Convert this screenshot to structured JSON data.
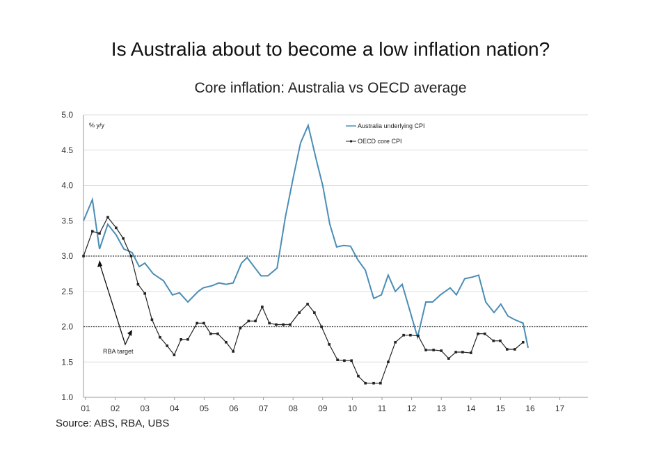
{
  "title": "Is Australia about to become a low inflation nation?",
  "subtitle": "Core inflation: Australia vs OECD average",
  "source": "Source: ABS, RBA, UBS",
  "chart_data": {
    "type": "line",
    "ylabel": "% y/y",
    "ylim": [
      1.0,
      5.0
    ],
    "xlim": [
      2001,
      2018
    ],
    "yticks": [
      "1.0",
      "1.5",
      "2.0",
      "2.5",
      "3.0",
      "3.5",
      "4.0",
      "4.5",
      "5.0"
    ],
    "xticks": [
      "01",
      "02",
      "03",
      "04",
      "05",
      "06",
      "07",
      "08",
      "09",
      "10",
      "11",
      "12",
      "13",
      "14",
      "15",
      "16",
      "17"
    ],
    "grid": true,
    "legend_position": "top-center",
    "reference_lines": [
      3.0,
      2.0
    ],
    "annotation": "RBA target",
    "series": [
      {
        "name": "Australia underlying CPI",
        "color": "#4a8db5",
        "points": [
          [
            2000.93,
            3.5
          ],
          [
            2001.23,
            3.8
          ],
          [
            2001.47,
            3.1
          ],
          [
            2001.75,
            3.45
          ],
          [
            2002.03,
            3.3
          ],
          [
            2002.29,
            3.1
          ],
          [
            2002.57,
            3.05
          ],
          [
            2002.81,
            2.85
          ],
          [
            2003.0,
            2.9
          ],
          [
            2003.28,
            2.75
          ],
          [
            2003.63,
            2.65
          ],
          [
            2003.93,
            2.45
          ],
          [
            2004.17,
            2.48
          ],
          [
            2004.45,
            2.35
          ],
          [
            2004.8,
            2.5
          ],
          [
            2004.97,
            2.55
          ],
          [
            2005.27,
            2.58
          ],
          [
            2005.5,
            2.62
          ],
          [
            2005.74,
            2.6
          ],
          [
            2005.98,
            2.62
          ],
          [
            2006.26,
            2.9
          ],
          [
            2006.45,
            2.98
          ],
          [
            2006.68,
            2.85
          ],
          [
            2006.92,
            2.72
          ],
          [
            2007.15,
            2.72
          ],
          [
            2007.46,
            2.83
          ],
          [
            2007.74,
            3.55
          ],
          [
            2008.0,
            4.1
          ],
          [
            2008.25,
            4.6
          ],
          [
            2008.51,
            4.85
          ],
          [
            2008.79,
            4.35
          ],
          [
            2009.0,
            4.0
          ],
          [
            2009.24,
            3.45
          ],
          [
            2009.47,
            3.13
          ],
          [
            2009.71,
            3.15
          ],
          [
            2009.94,
            3.14
          ],
          [
            2010.18,
            2.95
          ],
          [
            2010.44,
            2.8
          ],
          [
            2010.72,
            2.4
          ],
          [
            2010.98,
            2.45
          ],
          [
            2011.21,
            2.73
          ],
          [
            2011.45,
            2.5
          ],
          [
            2011.68,
            2.6
          ],
          [
            2011.96,
            2.2
          ],
          [
            2012.2,
            1.85
          ],
          [
            2012.48,
            2.35
          ],
          [
            2012.71,
            2.35
          ],
          [
            2012.97,
            2.45
          ],
          [
            2013.3,
            2.55
          ],
          [
            2013.51,
            2.45
          ],
          [
            2013.79,
            2.68
          ],
          [
            2014.03,
            2.7
          ],
          [
            2014.26,
            2.73
          ],
          [
            2014.5,
            2.35
          ],
          [
            2014.78,
            2.2
          ],
          [
            2015.01,
            2.32
          ],
          [
            2015.25,
            2.15
          ],
          [
            2015.48,
            2.1
          ],
          [
            2015.76,
            2.05
          ],
          [
            2015.93,
            1.7
          ]
        ]
      },
      {
        "name": "OECD core CPI",
        "color": "#222222",
        "points": [
          [
            2000.93,
            3.0
          ],
          [
            2001.23,
            3.35
          ],
          [
            2001.47,
            3.32
          ],
          [
            2001.75,
            3.55
          ],
          [
            2002.03,
            3.4
          ],
          [
            2002.27,
            3.25
          ],
          [
            2002.53,
            3.0
          ],
          [
            2002.77,
            2.6
          ],
          [
            2003.0,
            2.47
          ],
          [
            2003.24,
            2.1
          ],
          [
            2003.51,
            1.85
          ],
          [
            2003.75,
            1.73
          ],
          [
            2003.99,
            1.6
          ],
          [
            2004.22,
            1.82
          ],
          [
            2004.45,
            1.82
          ],
          [
            2004.76,
            2.05
          ],
          [
            2004.99,
            2.05
          ],
          [
            2005.22,
            1.9
          ],
          [
            2005.46,
            1.9
          ],
          [
            2005.74,
            1.78
          ],
          [
            2005.98,
            1.65
          ],
          [
            2006.22,
            1.98
          ],
          [
            2006.5,
            2.08
          ],
          [
            2006.73,
            2.08
          ],
          [
            2006.96,
            2.28
          ],
          [
            2007.2,
            2.05
          ],
          [
            2007.43,
            2.03
          ],
          [
            2007.67,
            2.03
          ],
          [
            2007.9,
            2.03
          ],
          [
            2008.21,
            2.2
          ],
          [
            2008.49,
            2.32
          ],
          [
            2008.72,
            2.2
          ],
          [
            2008.96,
            2.0
          ],
          [
            2009.22,
            1.75
          ],
          [
            2009.5,
            1.53
          ],
          [
            2009.73,
            1.52
          ],
          [
            2009.97,
            1.52
          ],
          [
            2010.2,
            1.3
          ],
          [
            2010.44,
            1.2
          ],
          [
            2010.72,
            1.2
          ],
          [
            2010.95,
            1.2
          ],
          [
            2011.21,
            1.5
          ],
          [
            2011.45,
            1.78
          ],
          [
            2011.73,
            1.88
          ],
          [
            2011.96,
            1.88
          ],
          [
            2012.22,
            1.87
          ],
          [
            2012.48,
            1.67
          ],
          [
            2012.74,
            1.67
          ],
          [
            2013.0,
            1.66
          ],
          [
            2013.25,
            1.55
          ],
          [
            2013.49,
            1.64
          ],
          [
            2013.72,
            1.64
          ],
          [
            2014.0,
            1.63
          ],
          [
            2014.24,
            1.9
          ],
          [
            2014.47,
            1.9
          ],
          [
            2014.76,
            1.8
          ],
          [
            2014.99,
            1.8
          ],
          [
            2015.22,
            1.68
          ],
          [
            2015.48,
            1.68
          ],
          [
            2015.76,
            1.78
          ]
        ]
      }
    ]
  }
}
